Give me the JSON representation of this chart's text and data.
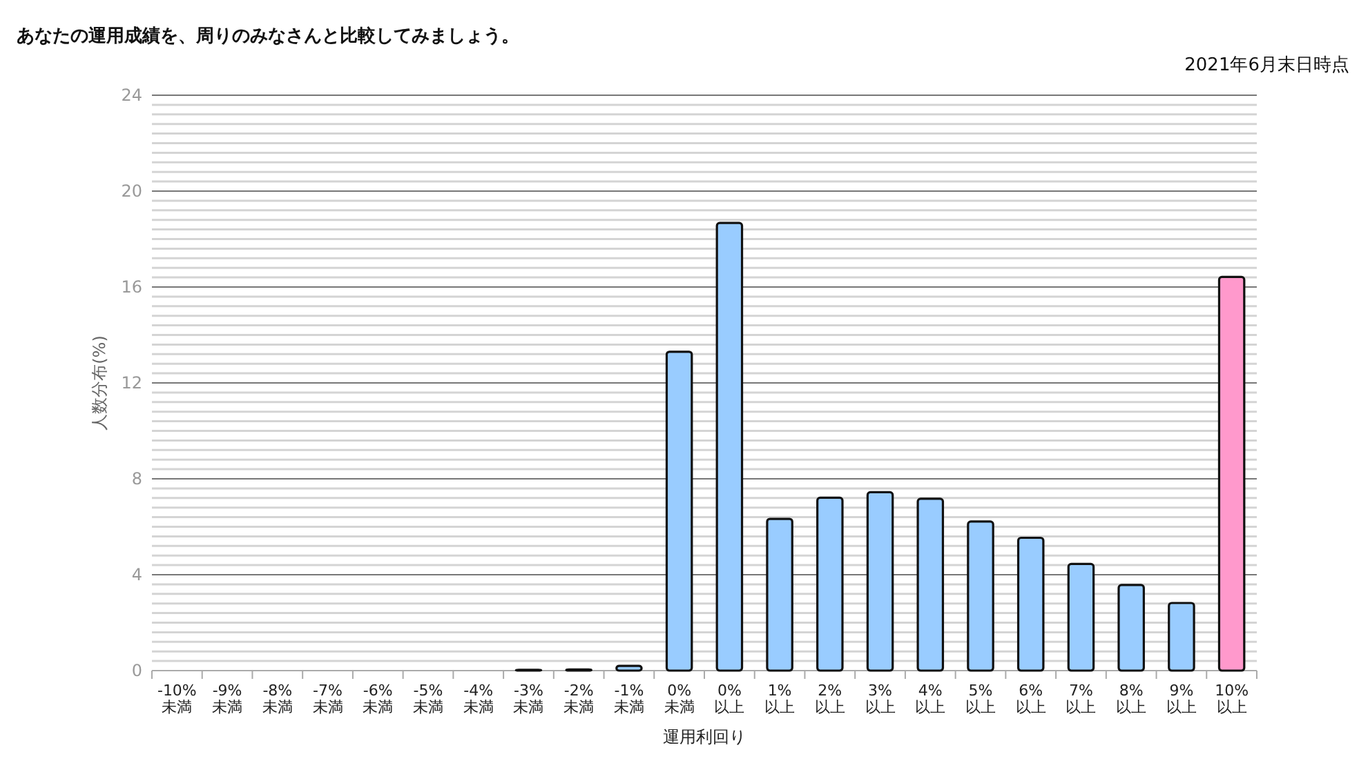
{
  "chart_data": {
    "type": "bar",
    "title": "あなたの運用成績を、周りのみなさんと比較してみましょう。",
    "subtitle": "2021年6月末日時点",
    "xlabel": "運用利回り",
    "ylabel": "人数分布(%)",
    "categories": [
      "-10% 未満",
      "-9% 未満",
      "-8% 未満",
      "-7% 未満",
      "-6% 未満",
      "-5% 未満",
      "-4% 未満",
      "-3% 未満",
      "-2% 未満",
      "-1% 未満",
      "0% 未満",
      "0% 以上",
      "1% 以上",
      "2% 以上",
      "3% 以上",
      "4% 以上",
      "5% 以上",
      "6% 以上",
      "7% 以上",
      "8% 以上",
      "9% 以上",
      "10% 以上"
    ],
    "values": [
      0,
      0,
      0,
      0,
      0,
      0,
      0,
      0.03,
      0.05,
      0.2,
      13.3,
      18.67,
      6.33,
      7.21,
      7.44,
      7.17,
      6.22,
      5.54,
      4.45,
      3.57,
      2.82,
      16.42
    ],
    "colors": [
      "#99ccff",
      "#99ccff",
      "#99ccff",
      "#99ccff",
      "#99ccff",
      "#99ccff",
      "#99ccff",
      "#99ccff",
      "#99ccff",
      "#99ccff",
      "#99ccff",
      "#99ccff",
      "#99ccff",
      "#99ccff",
      "#99ccff",
      "#99ccff",
      "#99ccff",
      "#99ccff",
      "#99ccff",
      "#99ccff",
      "#99ccff",
      "#ff99cc"
    ],
    "ylim": [
      0,
      24
    ],
    "yticks": [
      0,
      4,
      8,
      12,
      16,
      20,
      24
    ],
    "grid": "y"
  }
}
